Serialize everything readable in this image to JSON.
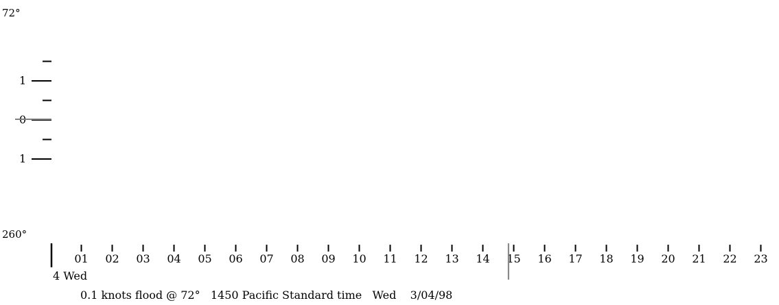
{
  "chart_data": {
    "type": "line",
    "y_top_label": "72°",
    "y_bottom_label": "260°",
    "y_ticks": [
      {
        "value": 1.5,
        "label": ""
      },
      {
        "value": 1,
        "label": "1"
      },
      {
        "value": 0.5,
        "label": ""
      },
      {
        "value": 0,
        "label": "0"
      },
      {
        "value": -0.5,
        "label": ""
      },
      {
        "value": -1,
        "label": "1"
      }
    ],
    "hours": [
      "01",
      "02",
      "03",
      "04",
      "05",
      "06",
      "07",
      "08",
      "09",
      "10",
      "11",
      "12",
      "13",
      "14",
      "15",
      "16",
      "17",
      "18",
      "19",
      "20",
      "21",
      "22",
      "23"
    ],
    "day_label": "4 Wed",
    "current_hour": 14.83,
    "current_speed": 0.1,
    "status_text": "0.1 knots flood @ 72°   1450 Pacific Standard time   Wed    3/04/98",
    "colors": {
      "ink": "#000000",
      "cursor": "#808080"
    }
  }
}
